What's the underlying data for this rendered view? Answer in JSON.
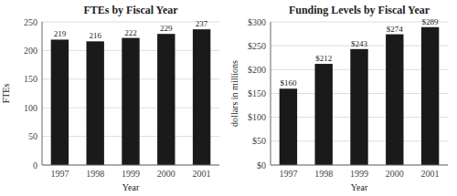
{
  "chart_data": [
    {
      "type": "bar",
      "title": "FTEs by Fiscal Year",
      "x_label": "Year",
      "y_label": "FTEs",
      "categories": [
        "1997",
        "1998",
        "1999",
        "2000",
        "2001"
      ],
      "values": [
        219,
        216,
        222,
        229,
        237
      ],
      "color": "#1a1a1a",
      "ylim": [
        0,
        250
      ],
      "yticks": [
        0,
        50,
        100,
        150,
        200,
        250
      ],
      "grid": true,
      "data_labels": true
    },
    {
      "type": "bar",
      "title": "Funding Levels by Fiscal Year",
      "x_label": "Year",
      "y_label": "dollars in millions",
      "categories": [
        "1997",
        "1998",
        "1999",
        "2000",
        "2001"
      ],
      "values": [
        160,
        212,
        243,
        274,
        289
      ],
      "value_labels": [
        "$160",
        "$212",
        "$243",
        "$274",
        "$289"
      ],
      "color": "#1a1a1a",
      "ylim": [
        0,
        300
      ],
      "yticks": [
        {
          "value": 0,
          "label": "$0"
        },
        {
          "value": 50,
          "label": "$50"
        },
        {
          "value": 100,
          "label": "$100"
        },
        {
          "value": 150,
          "label": "$150"
        },
        {
          "value": 200,
          "label": "$200"
        },
        {
          "value": 250,
          "label": "$250"
        },
        {
          "value": 300,
          "label": "$300"
        }
      ],
      "grid": true,
      "data_labels": true
    }
  ]
}
